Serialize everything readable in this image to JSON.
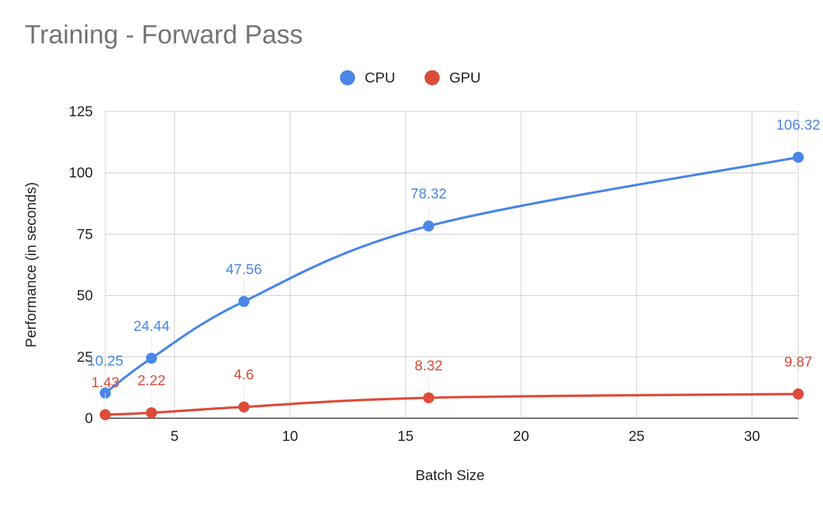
{
  "chart_data": {
    "type": "line",
    "title": "Training - Forward Pass",
    "xlabel": "Batch Size",
    "ylabel": "Performance (in seconds)",
    "xlim": [
      2,
      32
    ],
    "ylim": [
      0,
      125
    ],
    "x_ticks": [
      5,
      10,
      15,
      20,
      25,
      30
    ],
    "y_ticks": [
      0,
      25,
      50,
      75,
      100,
      125
    ],
    "grid": true,
    "legend_position": "top",
    "x": [
      2,
      4,
      8,
      16,
      32
    ],
    "series": [
      {
        "name": "CPU",
        "color": "#4a86e8",
        "values": [
          10.25,
          24.44,
          47.56,
          78.32,
          106.32
        ],
        "labels": [
          "10.25",
          "24.44",
          "47.56",
          "78.32",
          "106.32"
        ]
      },
      {
        "name": "GPU",
        "color": "#dd4b39",
        "values": [
          1.43,
          2.22,
          4.6,
          8.32,
          9.87
        ],
        "labels": [
          "1.43",
          "2.22",
          "4.6",
          "8.32",
          "9.87"
        ]
      }
    ]
  }
}
